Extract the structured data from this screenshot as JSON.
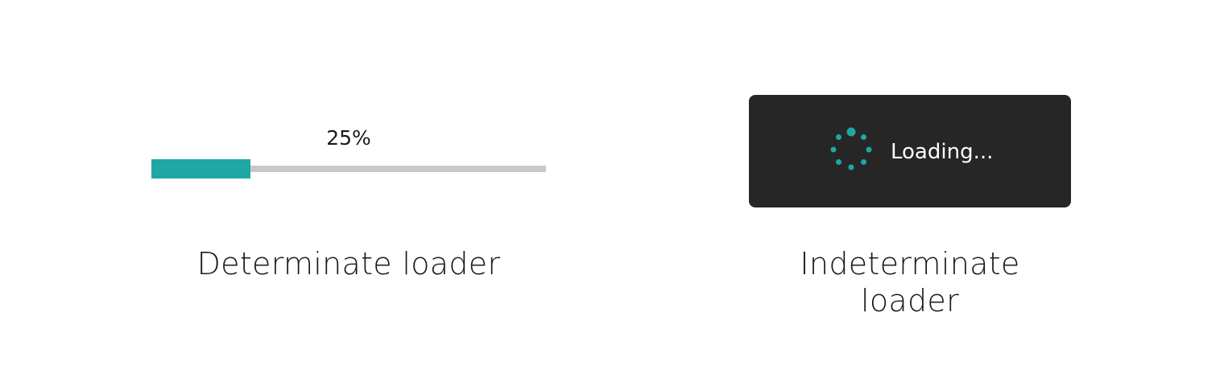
{
  "determinate": {
    "percent_label": "25%",
    "progress": 0.25,
    "caption": "Determinate loader"
  },
  "indeterminate": {
    "loading_text": "Loading...",
    "caption": "Indeterminate loader",
    "spinner_icon": "spinner-dots-icon"
  },
  "colors": {
    "accent": "#1fa7a4",
    "track": "#c8c8c8",
    "panel": "#262626",
    "panel_text": "#ffffff",
    "caption_text": "#1a1a1a"
  }
}
